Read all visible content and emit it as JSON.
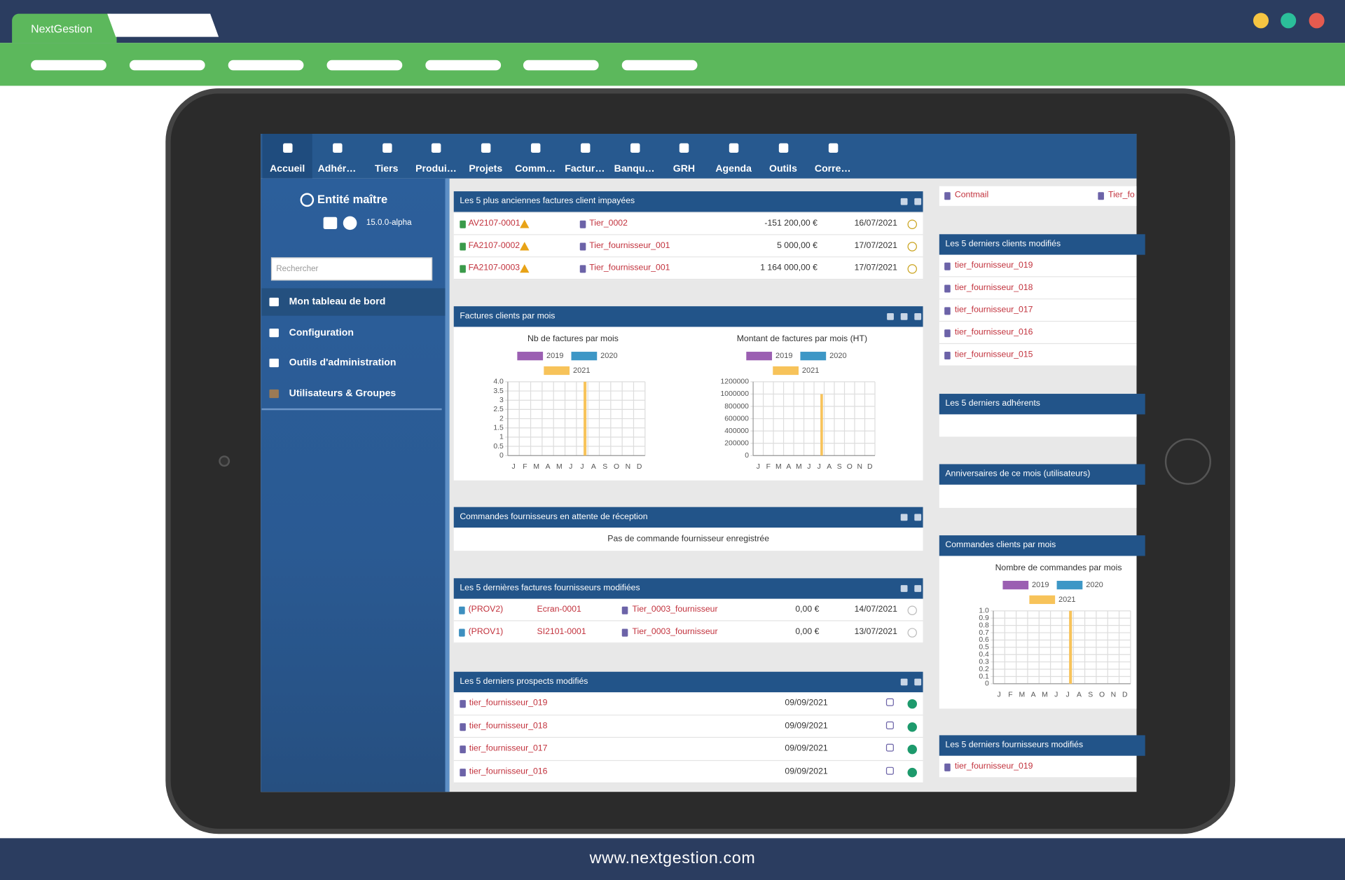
{
  "browser": {
    "tab": "NextGestion",
    "footer": "www.nextgestion.com"
  },
  "nav": [
    "Accueil",
    "Adhér…",
    "Tiers",
    "Produi…",
    "Projets",
    "Comm…",
    "Factur…",
    "Banqu…",
    "GRH",
    "Agenda",
    "Outils",
    "Corre…"
  ],
  "sidebar": {
    "entity": "Entité maître",
    "version": "15.0.0-alpha",
    "search": "Rechercher",
    "menu": [
      "Mon tableau de bord",
      "Configuration",
      "Outils d'administration",
      "Utilisateurs & Groupes"
    ]
  },
  "widgets": [
    {
      "title": "Les 5 plus anciennes factures client impayées",
      "rows": [
        [
          "AV2107-0001",
          "Tier_0002",
          "-151 200,00 €",
          "16/07/2021"
        ],
        [
          "FA2107-0002",
          "Tier_fournisseur_001",
          "5 000,00 €",
          "17/07/2021"
        ],
        [
          "FA2107-0003",
          "Tier_fournisseur_001",
          "1 164 000,00 €",
          "17/07/2021"
        ]
      ]
    },
    {
      "title": "Factures clients par mois",
      "charts": [
        {
          "type": "bar",
          "title": "Nb de factures par mois",
          "categories": [
            "J",
            "F",
            "M",
            "A",
            "M",
            "J",
            "J",
            "A",
            "S",
            "O",
            "N",
            "D"
          ],
          "series": [
            {
              "name": "2019",
              "color": "#9b5fb2",
              "values": [
                0,
                0,
                0,
                0,
                0,
                0,
                0,
                0,
                0,
                0,
                0,
                0
              ]
            },
            {
              "name": "2020",
              "color": "#3d97c6",
              "values": [
                0,
                0,
                0,
                0,
                0,
                0,
                0,
                0,
                0,
                0,
                0,
                0
              ]
            },
            {
              "name": "2021",
              "color": "#f7c35a",
              "values": [
                0,
                0,
                0,
                0,
                0,
                0,
                4,
                0,
                0,
                0,
                0,
                0
              ]
            }
          ],
          "ylim": [
            0,
            4
          ],
          "yticks": [
            0,
            0.5,
            1,
            1.5,
            2,
            2.5,
            3,
            3.5,
            {
              "value": 4,
              "label": "4.0"
            }
          ],
          "grid": true
        },
        {
          "type": "bar",
          "title": "Montant de factures par mois (HT)",
          "categories": [
            "J",
            "F",
            "M",
            "A",
            "M",
            "J",
            "J",
            "A",
            "S",
            "O",
            "N",
            "D"
          ],
          "series": [
            {
              "name": "2019",
              "color": "#9b5fb2",
              "values": [
                0,
                0,
                0,
                0,
                0,
                0,
                0,
                0,
                0,
                0,
                0,
                0
              ]
            },
            {
              "name": "2020",
              "color": "#3d97c6",
              "values": [
                0,
                0,
                0,
                0,
                0,
                0,
                0,
                0,
                0,
                0,
                0,
                0
              ]
            },
            {
              "name": "2021",
              "color": "#f7c35a",
              "values": [
                0,
                0,
                0,
                0,
                0,
                0,
                1000000,
                0,
                0,
                0,
                0,
                0
              ]
            }
          ],
          "ylim": [
            0,
            1200000
          ],
          "yticks": [
            0,
            200000,
            400000,
            600000,
            800000,
            1000000,
            1200000
          ],
          "grid": true
        }
      ]
    },
    {
      "title": "Commandes fournisseurs en attente de réception",
      "message": "Pas de commande fournisseur enregistrée"
    },
    {
      "title": "Les 5 dernières factures fournisseurs modifiées",
      "rows": [
        [
          "(PROV2)",
          "Ecran-0001",
          "Tier_0003_fournisseur",
          "0,00 €",
          "14/07/2021"
        ],
        [
          "(PROV1)",
          "SI2101-0001",
          "Tier_0003_fournisseur",
          "0,00 €",
          "13/07/2021"
        ]
      ]
    },
    {
      "title": "Les 5 derniers prospects modifiés",
      "rows": [
        [
          "tier_fournisseur_019",
          "09/09/2021"
        ],
        [
          "tier_fournisseur_018",
          "09/09/2021"
        ],
        [
          "tier_fournisseur_017",
          "09/09/2021"
        ],
        [
          "tier_fournisseur_016",
          "09/09/2021"
        ]
      ]
    }
  ],
  "right": {
    "top": [
      "Contmail",
      "Tier_fo"
    ],
    "widgets": [
      {
        "title": "Les 5 derniers clients modifiés",
        "items": [
          "tier_fournisseur_019",
          "tier_fournisseur_018",
          "tier_fournisseur_017",
          "tier_fournisseur_016",
          "tier_fournisseur_015"
        ]
      },
      {
        "title": "Les 5 derniers adhérents"
      },
      {
        "title": "Anniversaires de ce mois (utilisateurs)"
      },
      {
        "title": "Commandes clients par mois",
        "charts": [
          {
            "type": "bar",
            "title": "Nombre de commandes par mois",
            "categories": [
              "J",
              "F",
              "M",
              "A",
              "M",
              "J",
              "J",
              "A",
              "S",
              "O",
              "N",
              "D"
            ],
            "series": [
              {
                "name": "2019",
                "color": "#9b5fb2",
                "values": [
                  0,
                  0,
                  0,
                  0,
                  0,
                  0,
                  0,
                  0,
                  0,
                  0,
                  0,
                  0
                ]
              },
              {
                "name": "2020",
                "color": "#3d97c6",
                "values": [
                  0,
                  0,
                  0,
                  0,
                  0,
                  0,
                  0,
                  0,
                  0,
                  0,
                  0,
                  0
                ]
              },
              {
                "name": "2021",
                "color": "#f7c35a",
                "values": [
                  0,
                  0,
                  0,
                  0,
                  0,
                  0,
                  1,
                  0,
                  0,
                  0,
                  0,
                  0
                ]
              }
            ],
            "ylim": [
              0,
              1
            ],
            "yticks": [
              0,
              0.1,
              0.2,
              0.3,
              0.4,
              0.5,
              0.6,
              0.7,
              0.8,
              0.9,
              {
                "value": 1,
                "label": "1.0"
              }
            ],
            "grid": true
          }
        ]
      },
      {
        "title": "Les 5 derniers fournisseurs modifiés",
        "items": [
          "tier_fournisseur_019"
        ]
      }
    ]
  }
}
